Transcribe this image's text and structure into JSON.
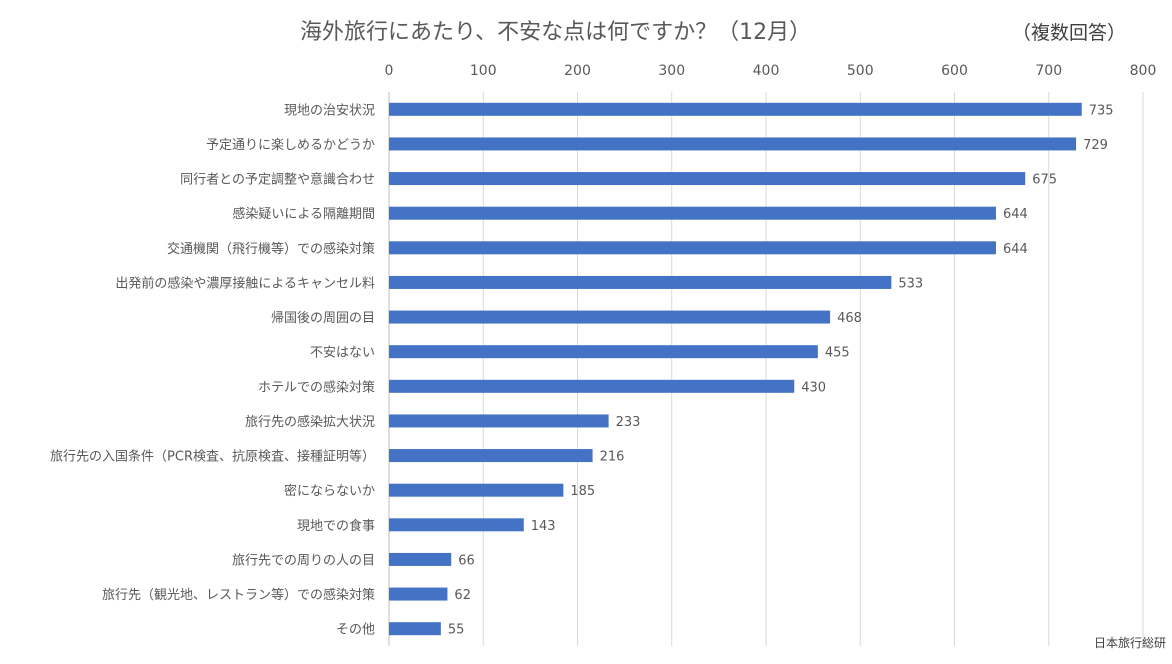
{
  "chart_data": {
    "type": "bar",
    "orientation": "horizontal",
    "title": "海外旅行にあたり、不安な点は何ですか？（12月）",
    "subtitle": "（複数回答）",
    "source": "日本旅行総研",
    "categories": [
      "現地の治安状況",
      "予定通りに楽しめるかどうか",
      "同行者との予定調整や意識合わせ",
      "感染疑いによる隔離期間",
      "交通機関（飛行機等）での感染対策",
      "出発前の感染や濃厚接触によるキャンセル料",
      "帰国後の周囲の目",
      "不安はない",
      "ホテルでの感染対策",
      "旅行先の感染拡大状況",
      "旅行先の入国条件（PCR検査、抗原検査、接種証明等）",
      "密にならないか",
      "現地での食事",
      "旅行先での周りの人の目",
      "旅行先（観光地、レストラン等）での感染対策",
      "その他"
    ],
    "values": [
      735,
      729,
      675,
      644,
      644,
      533,
      468,
      455,
      430,
      233,
      216,
      185,
      143,
      66,
      62,
      55
    ],
    "xlim": [
      0,
      800
    ],
    "x_ticks": [
      0,
      100,
      200,
      300,
      400,
      500,
      600,
      700,
      800
    ],
    "axis_position": "top",
    "grid": true,
    "legend": "none",
    "bar_color": "#4472C4",
    "grid_color": "#D9D9D9"
  }
}
